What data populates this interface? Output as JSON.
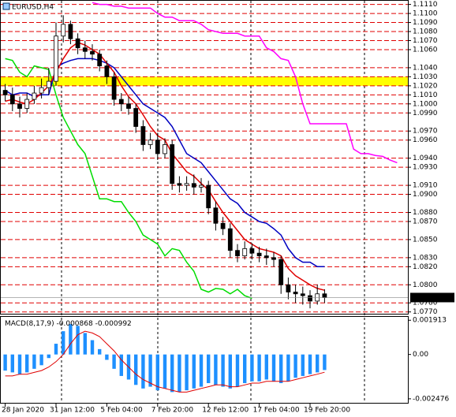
{
  "chart_data": [
    {
      "type": "candlestick",
      "title": "EURUSD,H4",
      "categories": [
        "28 Jan 2020",
        null,
        null,
        null,
        null,
        null,
        null,
        "31 Jan 12:00",
        null,
        null,
        null,
        null,
        null,
        null,
        "5 Feb 04:00",
        null,
        null,
        null,
        null,
        null,
        null,
        "7 Feb 20:00",
        null,
        null,
        null,
        null,
        null,
        null,
        "12 Feb 12:00",
        null,
        null,
        null,
        null,
        null,
        null,
        "17 Feb 04:00",
        null,
        null,
        null,
        null,
        null,
        null,
        "19 Feb 20:00",
        null,
        null,
        null,
        null,
        null,
        null,
        null,
        null,
        null,
        null,
        null,
        null
      ],
      "open": [
        1.1015,
        1.101,
        1.1,
        1.0995,
        1.1005,
        1.1012,
        1.1018,
        1.1025,
        1.1075,
        1.1088,
        1.1072,
        1.1062,
        1.1058,
        1.1055,
        1.1042,
        1.103,
        1.1005,
        1.1,
        1.0995,
        1.0975,
        1.0955,
        1.096,
        1.0945,
        1.0955,
        1.0912,
        1.091,
        1.0912,
        1.0908,
        1.091,
        1.0885,
        1.0868,
        1.0862,
        1.0838,
        1.0832,
        1.084,
        1.0835,
        1.0832,
        1.083,
        1.0828,
        1.08,
        1.0792,
        1.079,
        1.0788,
        1.0782,
        1.079,
        null,
        null,
        null,
        null,
        null,
        null,
        null,
        null,
        null,
        null
      ],
      "high": [
        1.1022,
        1.1018,
        1.1008,
        1.1012,
        1.102,
        1.1028,
        1.104,
        1.109,
        1.1098,
        1.1092,
        1.1078,
        1.107,
        1.1066,
        1.106,
        1.1048,
        1.1035,
        1.1012,
        1.1008,
        1.1,
        1.0982,
        1.0968,
        1.0968,
        1.0962,
        1.096,
        1.092,
        1.092,
        1.0922,
        1.0918,
        1.0915,
        1.0892,
        1.0875,
        1.0868,
        1.0845,
        1.0848,
        1.0846,
        1.0842,
        1.084,
        1.0836,
        1.0832,
        1.0808,
        1.08,
        1.0798,
        1.0794,
        1.08,
        1.0795,
        null,
        null,
        null,
        null,
        null,
        null,
        null,
        null,
        null,
        null
      ],
      "low": [
        1.1003,
        1.0992,
        1.0985,
        1.099,
        1.1,
        1.1006,
        1.101,
        1.102,
        1.1068,
        1.1066,
        1.1055,
        1.105,
        1.1048,
        1.1036,
        1.1022,
        1.0998,
        1.0992,
        1.0988,
        1.0968,
        1.0948,
        1.095,
        1.0938,
        1.094,
        1.0905,
        1.0902,
        1.0904,
        1.09,
        1.0902,
        1.0878,
        1.086,
        1.0855,
        1.083,
        1.0825,
        1.0828,
        1.0828,
        1.0825,
        1.0822,
        1.082,
        1.079,
        1.0784,
        1.078,
        1.0778,
        1.0774,
        1.0778,
        1.078,
        null,
        null,
        null,
        null,
        null,
        null,
        null,
        null,
        null,
        null
      ],
      "close": [
        1.101,
        1.1,
        1.0995,
        1.1005,
        1.1012,
        1.1018,
        1.1025,
        1.1075,
        1.1088,
        1.1072,
        1.1062,
        1.1058,
        1.1055,
        1.1042,
        1.103,
        1.1005,
        1.1,
        1.0995,
        1.0975,
        1.0955,
        1.096,
        1.0945,
        1.0955,
        1.0912,
        1.091,
        1.0912,
        1.0908,
        1.091,
        1.0885,
        1.0868,
        1.0862,
        1.0838,
        1.0832,
        1.084,
        1.0835,
        1.0832,
        1.083,
        1.0828,
        1.08,
        1.0792,
        1.079,
        1.0788,
        1.0782,
        1.079,
        1.07859,
        null,
        null,
        null,
        null,
        null,
        null,
        null,
        null,
        null,
        null
      ],
      "series": [
        {
          "color": "#ff00ff",
          "values": [
            null,
            null,
            null,
            null,
            null,
            null,
            null,
            null,
            null,
            null,
            null,
            null,
            1.1112,
            1.111,
            1.111,
            1.1108,
            1.1108,
            1.1106,
            1.1106,
            1.1106,
            1.1106,
            1.11,
            1.1096,
            1.1096,
            1.1092,
            1.1092,
            1.1092,
            1.1088,
            1.1082,
            1.108,
            1.1078,
            1.1078,
            1.1078,
            1.1075,
            1.1075,
            1.1075,
            1.1062,
            1.1058,
            1.105,
            1.1048,
            1.103,
            1.1,
            1.0978,
            1.0978,
            1.0978,
            1.0978,
            1.0978,
            1.0978,
            1.095,
            1.0945,
            1.0945,
            1.0943,
            1.0942,
            1.0938,
            1.0935
          ]
        },
        {
          "color": "#00dd00",
          "values": [
            1.105,
            1.1048,
            1.1035,
            1.103,
            1.1042,
            1.104,
            1.1038,
            1.101,
            1.0985,
            1.097,
            1.0955,
            1.0945,
            1.092,
            1.0895,
            1.0895,
            1.0892,
            1.0892,
            1.088,
            1.087,
            1.0855,
            1.085,
            1.0845,
            1.0832,
            1.084,
            1.0838,
            1.0825,
            1.0815,
            1.0795,
            1.0792,
            1.0796,
            1.0795,
            1.079,
            1.0795,
            1.0788,
            1.0785,
            null,
            null,
            null,
            null,
            null,
            null,
            null,
            null,
            null,
            null,
            null,
            null,
            null,
            null,
            null,
            null,
            null,
            null,
            null,
            null
          ]
        },
        {
          "color": "#0000c0",
          "values": [
            1.1015,
            1.101,
            1.1012,
            1.1012,
            1.1008,
            1.101,
            1.101,
            1.104,
            1.1045,
            1.1048,
            1.105,
            1.105,
            1.105,
            1.1048,
            1.1045,
            1.104,
            1.103,
            1.102,
            1.101,
            1.1,
            1.0995,
            1.099,
            1.0985,
            1.0975,
            1.096,
            1.0945,
            1.094,
            1.0935,
            1.0925,
            1.0915,
            1.0905,
            1.0895,
            1.089,
            1.088,
            1.0875,
            1.087,
            1.0868,
            1.0862,
            1.0855,
            1.084,
            1.083,
            1.0825,
            1.0825,
            1.082,
            1.082,
            null,
            null,
            null,
            null,
            null,
            null,
            null,
            null,
            null,
            null
          ]
        },
        {
          "color": "#e00000",
          "values": [
            1.1003,
            1.1005,
            1.1002,
            1.1,
            1.1005,
            1.1012,
            1.102,
            1.1035,
            1.105,
            1.1062,
            1.1068,
            1.1065,
            1.106,
            1.1055,
            1.1045,
            1.1035,
            1.102,
            1.1008,
            1.1,
            1.0988,
            1.0975,
            1.0965,
            1.096,
            1.0945,
            1.0935,
            1.0925,
            1.092,
            1.0912,
            1.0905,
            1.0892,
            1.088,
            1.087,
            1.086,
            1.085,
            1.0845,
            1.084,
            1.0838,
            1.0836,
            1.0832,
            1.0818,
            1.081,
            1.0805,
            1.08,
            1.0796,
            1.0794,
            null,
            null,
            null,
            null,
            null,
            null,
            null,
            null,
            null,
            null
          ]
        }
      ],
      "band": [
        1.102,
        1.103
      ],
      "band_color": "#ffff00",
      "last_price": 1.07859,
      "ylim": [
        1.0768,
        1.1114
      ],
      "yticks": [
        {
          "value": 1.111,
          "label": "1.1110"
        },
        {
          "value": 1.11,
          "label": "1.1100"
        },
        {
          "value": 1.109,
          "label": "1.1090"
        },
        {
          "value": 1.108,
          "label": "1.1080"
        },
        {
          "value": 1.107,
          "label": "1.1070"
        },
        {
          "value": 1.106,
          "label": "1.1060"
        },
        {
          "value": 1.104,
          "label": "1.1040"
        },
        {
          "value": 1.103,
          "label": "1.1030"
        },
        {
          "value": 1.102,
          "label": "1.1020"
        },
        {
          "value": 1.101,
          "label": "1.1010"
        },
        {
          "value": 1.1,
          "label": "1.1000"
        },
        {
          "value": 1.099,
          "label": "1.0990"
        },
        {
          "value": 1.097,
          "label": "1.0970"
        },
        {
          "value": 1.096,
          "label": "1.0960"
        },
        {
          "value": 1.094,
          "label": "1.0940"
        },
        {
          "value": 1.093,
          "label": "1.0930"
        },
        {
          "value": 1.091,
          "label": "1.0910"
        },
        {
          "value": 1.09,
          "label": "1.0900"
        },
        {
          "value": 1.088,
          "label": "1.0880"
        },
        {
          "value": 1.087,
          "label": "1.0870"
        },
        {
          "value": 1.085,
          "label": "1.0850"
        },
        {
          "value": 1.083,
          "label": "1.0830"
        },
        {
          "value": 1.082,
          "label": "1.0820"
        },
        {
          "value": 1.08,
          "label": "1.0800"
        },
        {
          "value": 1.078,
          "label": "1.0780"
        },
        {
          "value": 1.077,
          "label": "1.0770"
        }
      ]
    },
    {
      "type": "macd",
      "title": "MACD(8,17,9)",
      "legend_values": [
        -0.000868,
        -0.000992
      ],
      "values": [
        -0.0009,
        -0.001,
        -0.0011,
        -0.001,
        -0.0008,
        -0.0006,
        -0.0002,
        0.0006,
        0.0013,
        0.0017,
        0.0016,
        0.0012,
        0.0008,
        0.0003,
        -0.0003,
        -0.0008,
        -0.0012,
        -0.0014,
        -0.0017,
        -0.0019,
        -0.0018,
        -0.002,
        -0.0019,
        -0.0021,
        -0.0021,
        -0.002,
        -0.0019,
        -0.0018,
        -0.0016,
        -0.0017,
        -0.0018,
        -0.0019,
        -0.0018,
        -0.0016,
        -0.0015,
        -0.0015,
        -0.0014,
        -0.0015,
        -0.0016,
        -0.0015,
        -0.0013,
        -0.0012,
        -0.0011,
        -0.001,
        -0.000868
      ],
      "color": "#1e90ff",
      "signal": [
        -0.0012,
        -0.0012,
        -0.0011,
        -0.0011,
        -0.001,
        -0.0009,
        -0.0007,
        -0.0004,
        0.0,
        0.0006,
        0.0011,
        0.0013,
        0.0012,
        0.001,
        0.0006,
        0.0002,
        -0.0003,
        -0.0007,
        -0.0011,
        -0.0014,
        -0.0016,
        -0.0018,
        -0.0019,
        -0.002,
        -0.0021,
        -0.0021,
        -0.002,
        -0.0019,
        -0.0018,
        -0.0017,
        -0.0017,
        -0.0018,
        -0.0018,
        -0.0017,
        -0.0016,
        -0.0016,
        -0.0015,
        -0.0015,
        -0.0015,
        -0.0015,
        -0.0014,
        -0.0013,
        -0.0012,
        -0.0011,
        -0.000992
      ],
      "signal_color": "#e00000",
      "ylim": [
        -0.0027,
        0.0021
      ],
      "yticks": [
        0.001913,
        {
          "value": 0,
          "label": "0.00"
        },
        -0.002476
      ]
    }
  ]
}
